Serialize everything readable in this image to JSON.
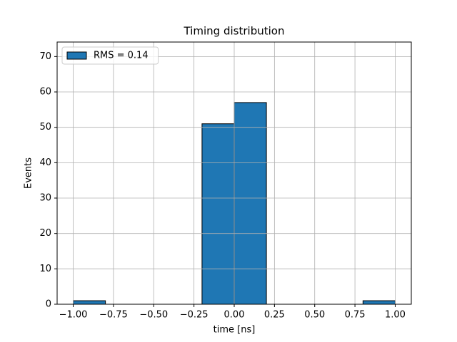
{
  "chart_data": {
    "type": "histogram",
    "title": "Timing distribution",
    "xlabel": "time [ns]",
    "ylabel": "Events",
    "bins": [
      -1.0,
      -0.8,
      -0.6,
      -0.4,
      -0.2,
      0.0,
      0.2,
      0.4,
      0.6,
      0.8,
      1.0
    ],
    "series": [
      {
        "name": "RMS = 0.14",
        "color": "#1f77b4",
        "values": [
          1,
          0,
          0,
          0,
          51,
          57,
          0,
          0,
          0,
          1
        ]
      }
    ],
    "xlim": [
      -1.1,
      1.1
    ],
    "xticks": [
      {
        "value": -1.0,
        "label": "−1.00"
      },
      {
        "value": -0.75,
        "label": "−0.75"
      },
      {
        "value": -0.5,
        "label": "−0.50"
      },
      {
        "value": -0.25,
        "label": "−0.25"
      },
      {
        "value": 0,
        "label": "0.00"
      },
      {
        "value": 0.25,
        "label": "0.25"
      },
      {
        "value": 0.5,
        "label": "0.50"
      },
      {
        "value": 0.75,
        "label": "0.75"
      },
      {
        "value": 1.0,
        "label": "1.00"
      }
    ],
    "ylim": [
      0,
      74.1
    ],
    "yticks": [
      0,
      10,
      20,
      30,
      40,
      50,
      60,
      70
    ],
    "grid": true,
    "legend": "upper left"
  }
}
